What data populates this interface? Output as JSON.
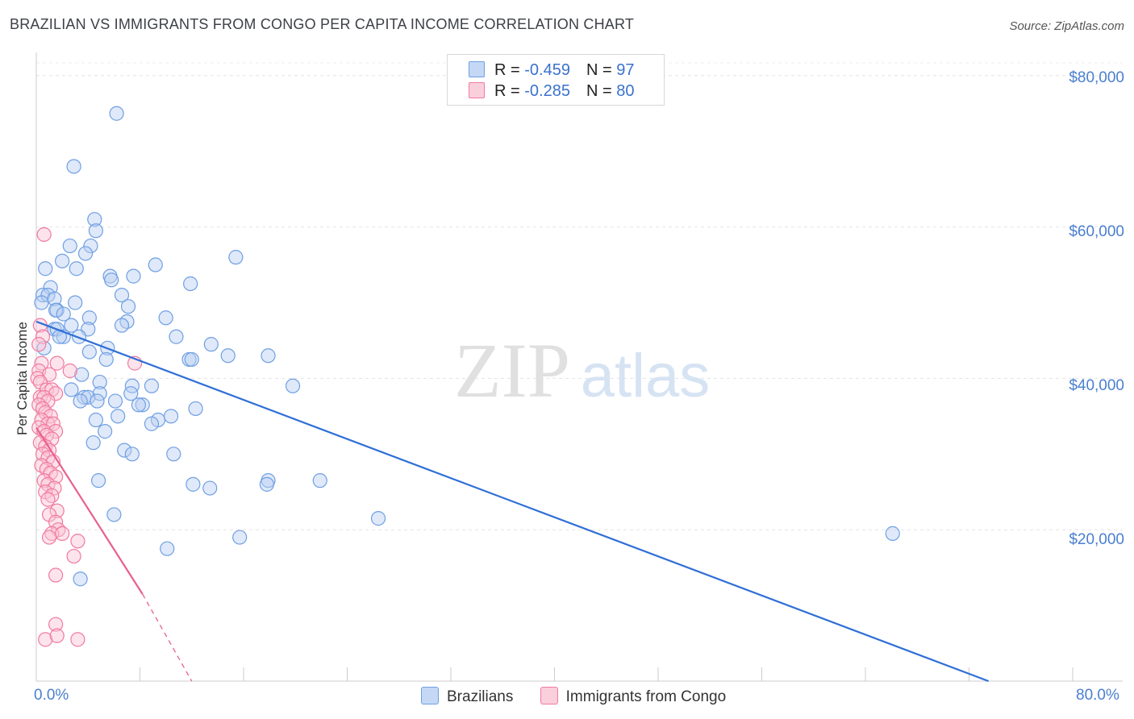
{
  "title": "BRAZILIAN VS IMMIGRANTS FROM CONGO PER CAPITA INCOME CORRELATION CHART",
  "source": "Source: ZipAtlas.com",
  "watermark": {
    "zip": "ZIP",
    "atlas": "atlas"
  },
  "legend_top": {
    "row1": {
      "r_label": "R = ",
      "r_value": "-0.459",
      "n_label": "N = ",
      "n_value": "97"
    },
    "row2": {
      "r_label": "R = ",
      "r_value": "-0.285",
      "n_label": "N = ",
      "n_value": "80"
    }
  },
  "chart_data": {
    "type": "scatter",
    "title": "BRAZILIAN VS IMMIGRANTS FROM CONGO PER CAPITA INCOME CORRELATION CHART",
    "xlabel": "",
    "ylabel": "Per Capita Income",
    "xlim": [
      0,
      80
    ],
    "ylim": [
      0,
      82000
    ],
    "x_tick_labels": [
      "0.0%",
      "80.0%"
    ],
    "y_ticks": [
      20000,
      40000,
      60000,
      80000
    ],
    "y_tick_labels": [
      "$20,000",
      "$40,000",
      "$60,000",
      "$80,000"
    ],
    "colors": {
      "brazilians": "#6f9fe3",
      "congo": "#f07aa0",
      "blue_line": "#2f6fd6",
      "pink_line": "#e8608e"
    },
    "series": [
      {
        "name": "Brazilians",
        "r": -0.459,
        "n": 97,
        "trend": {
          "x0": 0,
          "y0": 47500,
          "x1": 73.5,
          "y1": 0
        },
        "points": [
          [
            6.2,
            75000
          ],
          [
            2.9,
            68000
          ],
          [
            4.5,
            61000
          ],
          [
            4.6,
            59500
          ],
          [
            4.2,
            57500
          ],
          [
            2.6,
            57500
          ],
          [
            15.4,
            56000
          ],
          [
            3.8,
            56500
          ],
          [
            2.0,
            55500
          ],
          [
            0.7,
            54500
          ],
          [
            9.2,
            55000
          ],
          [
            3.1,
            54500
          ],
          [
            5.7,
            53500
          ],
          [
            7.5,
            53500
          ],
          [
            5.8,
            53000
          ],
          [
            11.9,
            52500
          ],
          [
            1.1,
            52000
          ],
          [
            0.5,
            51000
          ],
          [
            0.9,
            51000
          ],
          [
            6.6,
            51000
          ],
          [
            1.4,
            50500
          ],
          [
            3.0,
            50000
          ],
          [
            0.4,
            50000
          ],
          [
            1.6,
            49000
          ],
          [
            1.5,
            49000
          ],
          [
            7.1,
            49500
          ],
          [
            2.1,
            48500
          ],
          [
            4.1,
            48000
          ],
          [
            10.0,
            48000
          ],
          [
            7.0,
            47500
          ],
          [
            2.7,
            47000
          ],
          [
            6.6,
            47000
          ],
          [
            1.4,
            46500
          ],
          [
            1.6,
            46500
          ],
          [
            4.0,
            46500
          ],
          [
            2.1,
            45500
          ],
          [
            1.8,
            45500
          ],
          [
            3.3,
            45500
          ],
          [
            10.8,
            45500
          ],
          [
            13.5,
            44500
          ],
          [
            0.6,
            44000
          ],
          [
            5.5,
            44000
          ],
          [
            4.1,
            43500
          ],
          [
            17.9,
            43000
          ],
          [
            14.8,
            43000
          ],
          [
            11.8,
            42500
          ],
          [
            12.0,
            42500
          ],
          [
            5.4,
            42500
          ],
          [
            3.5,
            40500
          ],
          [
            4.9,
            39500
          ],
          [
            8.9,
            39000
          ],
          [
            7.4,
            39000
          ],
          [
            19.8,
            39000
          ],
          [
            2.7,
            38500
          ],
          [
            4.9,
            38000
          ],
          [
            7.3,
            38000
          ],
          [
            3.7,
            37500
          ],
          [
            4.0,
            37500
          ],
          [
            3.4,
            37000
          ],
          [
            4.7,
            37000
          ],
          [
            6.1,
            37000
          ],
          [
            8.2,
            36500
          ],
          [
            7.9,
            36500
          ],
          [
            12.3,
            36000
          ],
          [
            6.3,
            35000
          ],
          [
            9.4,
            34500
          ],
          [
            10.4,
            35000
          ],
          [
            4.6,
            34500
          ],
          [
            8.9,
            34000
          ],
          [
            5.3,
            33000
          ],
          [
            4.4,
            31500
          ],
          [
            6.8,
            30500
          ],
          [
            7.4,
            30000
          ],
          [
            10.6,
            30000
          ],
          [
            4.8,
            26500
          ],
          [
            12.1,
            26000
          ],
          [
            13.4,
            25500
          ],
          [
            17.9,
            26500
          ],
          [
            17.8,
            26000
          ],
          [
            21.9,
            26500
          ],
          [
            6.0,
            22000
          ],
          [
            26.4,
            21500
          ],
          [
            15.7,
            19000
          ],
          [
            66.1,
            19500
          ],
          [
            10.1,
            17500
          ],
          [
            3.4,
            13500
          ]
        ]
      },
      {
        "name": "Immigrants from Congo",
        "r": -0.285,
        "n": 80,
        "trend": {
          "x0": 0,
          "y0": 33500,
          "x1": 8.2,
          "y1": 11500,
          "dash_x1": 12.0,
          "dash_y1": 0
        },
        "points": [
          [
            0.6,
            59000
          ],
          [
            0.3,
            47000
          ],
          [
            0.5,
            45500
          ],
          [
            0.2,
            44500
          ],
          [
            0.4,
            42000
          ],
          [
            1.6,
            42000
          ],
          [
            7.6,
            42000
          ],
          [
            0.2,
            41000
          ],
          [
            1.0,
            40500
          ],
          [
            2.6,
            41000
          ],
          [
            0.1,
            40000
          ],
          [
            0.3,
            39500
          ],
          [
            0.8,
            38500
          ],
          [
            1.2,
            38500
          ],
          [
            1.5,
            38000
          ],
          [
            0.3,
            37500
          ],
          [
            0.6,
            37500
          ],
          [
            0.9,
            37000
          ],
          [
            0.2,
            36500
          ],
          [
            0.5,
            36000
          ],
          [
            0.7,
            35500
          ],
          [
            1.1,
            35000
          ],
          [
            0.4,
            34500
          ],
          [
            0.9,
            34000
          ],
          [
            1.3,
            34000
          ],
          [
            0.2,
            33500
          ],
          [
            0.6,
            33000
          ],
          [
            1.5,
            33000
          ],
          [
            0.8,
            32500
          ],
          [
            1.2,
            32000
          ],
          [
            0.3,
            31500
          ],
          [
            0.7,
            31000
          ],
          [
            1.0,
            30500
          ],
          [
            0.5,
            30000
          ],
          [
            0.9,
            29500
          ],
          [
            1.3,
            29000
          ],
          [
            0.4,
            28500
          ],
          [
            0.8,
            28000
          ],
          [
            1.1,
            27500
          ],
          [
            1.5,
            27000
          ],
          [
            0.6,
            26500
          ],
          [
            0.9,
            26000
          ],
          [
            1.4,
            25500
          ],
          [
            0.7,
            25000
          ],
          [
            1.2,
            24500
          ],
          [
            0.9,
            24000
          ],
          [
            1.6,
            22500
          ],
          [
            1.0,
            22000
          ],
          [
            1.5,
            21000
          ],
          [
            1.7,
            20000
          ],
          [
            1.2,
            19500
          ],
          [
            2.0,
            19500
          ],
          [
            1.0,
            19000
          ],
          [
            3.2,
            18500
          ],
          [
            2.9,
            16500
          ],
          [
            1.5,
            14000
          ],
          [
            1.5,
            7500
          ],
          [
            0.7,
            5500
          ],
          [
            1.6,
            6000
          ],
          [
            3.2,
            5500
          ]
        ]
      }
    ]
  },
  "legend_bottom": {
    "item1": "Brazilians",
    "item2": "Immigrants from Congo"
  }
}
